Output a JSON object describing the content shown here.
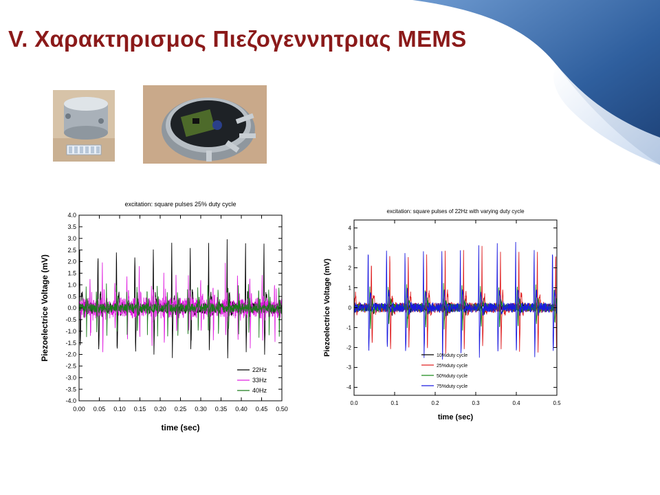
{
  "slide": {
    "title": "V. Χαρακτηρισμος Πιεζογεννητριας MEMS"
  },
  "colors": {
    "title": "#8b1a1a",
    "curl_dark": "#2f5f9e",
    "curl_light": "#cfdff1"
  },
  "photos": [
    {
      "name": "device-closed-photo"
    },
    {
      "name": "device-open-photo"
    }
  ],
  "chart_data": [
    {
      "type": "line",
      "title": "excitation: square pulses 25% duty cycle",
      "xlabel": "time (sec)",
      "ylabel": "Piezoelectrice Voltage (mV)",
      "xlim": [
        0,
        0.5
      ],
      "ylim": [
        -4,
        4
      ],
      "xticks": [
        0,
        0.05,
        0.1,
        0.15,
        0.2,
        0.25,
        0.3,
        0.35,
        0.4,
        0.45,
        0.5
      ],
      "xtick_labels": [
        "0.00",
        "0.05",
        "0.10",
        "0.15",
        "0.20",
        "0.25",
        "0.30",
        "0.35",
        "0.40",
        "0.45",
        "0.50"
      ],
      "yticks": [
        -4,
        -3.5,
        -3,
        -2.5,
        -2,
        -1.5,
        -1,
        -0.5,
        0,
        0.5,
        1,
        1.5,
        2,
        2.5,
        3,
        3.5,
        4
      ],
      "ytick_labels": [
        "-4.0",
        "-3.5",
        "-3.0",
        "-2.5",
        "-2.0",
        "-1.5",
        "-1.0",
        "-0.5",
        "0.0",
        "0.5",
        "1.0",
        "1.5",
        "2.0",
        "2.5",
        "3.0",
        "3.5",
        "4.0"
      ],
      "legend_position": "bottom-right",
      "grid": false,
      "series": [
        {
          "name": "22Hz",
          "color": "#000000",
          "freq": 22,
          "peak": 2.9,
          "trough": -2.0,
          "noise": 0.25
        },
        {
          "name": "33Hz",
          "color": "#e020e0",
          "freq": 33,
          "peak": 1.7,
          "trough": -1.5,
          "noise": 0.45
        },
        {
          "name": "40Hz",
          "color": "#1a7a1a",
          "freq": 40,
          "peak": 1.3,
          "trough": -1.1,
          "noise": 0.2
        }
      ]
    },
    {
      "type": "line",
      "title": "excitation: square pulses of 22Hz with varying duty cycle",
      "xlabel": "time (sec)",
      "ylabel": "Piezoelectrice Voltage (mV)",
      "xlim": [
        0,
        0.5
      ],
      "ylim": [
        -4.4,
        4.4
      ],
      "xticks": [
        0,
        0.1,
        0.2,
        0.3,
        0.4,
        0.5
      ],
      "xtick_labels": [
        "0.0",
        "0.1",
        "0.2",
        "0.3",
        "0.4",
        "0.5"
      ],
      "yticks": [
        -4,
        -3,
        -2,
        -1,
        0,
        1,
        2,
        3,
        4
      ],
      "ytick_labels": [
        "-4",
        "-3",
        "-2",
        "-1",
        "0",
        "1",
        "2",
        "3",
        "4"
      ],
      "legend_position": "bottom-center",
      "grid": false,
      "series": [
        {
          "name": "10%duty cycle",
          "color": "#000000",
          "freq": 22,
          "peak": 0.4,
          "trough": -0.3,
          "noise": 0.18
        },
        {
          "name": "25%duty cycle",
          "color": "#e02020",
          "freq": 22,
          "peak": 3.0,
          "trough": -2.2,
          "noise": 0.25
        },
        {
          "name": "50%duty cycle",
          "color": "#1a8a1a",
          "freq": 22,
          "peak": 1.2,
          "trough": -1.0,
          "noise": 0.2
        },
        {
          "name": "75%duty cycle",
          "color": "#1a1ae0",
          "freq": 22,
          "peak": 3.3,
          "trough": -2.5,
          "noise": 0.25
        }
      ]
    }
  ]
}
